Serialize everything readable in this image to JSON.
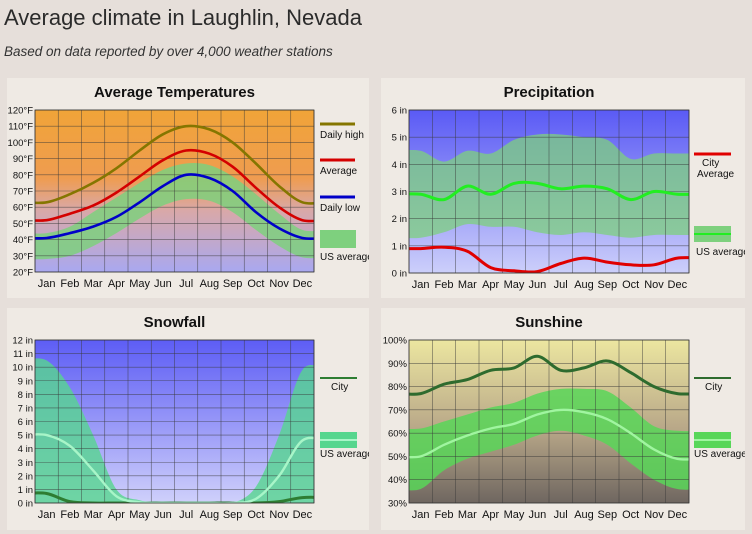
{
  "page": {
    "title": "Average climate in Laughlin, Nevada",
    "subtitle": "Based on data reported by over 4,000 weather stations"
  },
  "colors": {
    "temp_high": "#857600",
    "temp_avg": "#d40000",
    "temp_low": "#0000c8",
    "us_band": "#7ed07e",
    "precip_city": "#e00000",
    "precip_us": "#22ee22",
    "snow_city": "#2e7d32",
    "snow_us": "#a8f5c8",
    "sun_city": "#2e6b2e",
    "sun_us": "#a0f5a0"
  },
  "chart_data": [
    {
      "id": "temperature",
      "type": "line",
      "title": "Average Temperatures",
      "categories": [
        "Jan",
        "Feb",
        "Mar",
        "Apr",
        "May",
        "Jun",
        "Jul",
        "Aug",
        "Sep",
        "Oct",
        "Nov",
        "Dec"
      ],
      "ylim": [
        20,
        120
      ],
      "yticks": [
        "20°F",
        "30°F",
        "40°F",
        "50°F",
        "60°F",
        "70°F",
        "80°F",
        "90°F",
        "100°F",
        "110°F",
        "120°F"
      ],
      "series": [
        {
          "name": "Daily high",
          "values": [
            63,
            68,
            75,
            84,
            95,
            105,
            110,
            108,
            100,
            87,
            73,
            63
          ]
        },
        {
          "name": "Average",
          "values": [
            52,
            56,
            61,
            69,
            79,
            89,
            95,
            93,
            85,
            72,
            60,
            52
          ]
        },
        {
          "name": "Daily low",
          "values": [
            41,
            44,
            48,
            54,
            63,
            73,
            80,
            78,
            70,
            57,
            47,
            41
          ]
        }
      ],
      "us_average": {
        "name": "US average",
        "upper": [
          44,
          48,
          57,
          66,
          75,
          83,
          87,
          86,
          79,
          68,
          56,
          46
        ],
        "lower": [
          28,
          30,
          36,
          44,
          53,
          61,
          65,
          64,
          57,
          46,
          36,
          29
        ]
      }
    },
    {
      "id": "precipitation",
      "type": "line",
      "title": "Precipitation",
      "categories": [
        "Jan",
        "Feb",
        "Mar",
        "Apr",
        "May",
        "Jun",
        "Jul",
        "Aug",
        "Sep",
        "Oct",
        "Nov",
        "Dec"
      ],
      "ylim": [
        0,
        6
      ],
      "yticks": [
        "0 in",
        "1 in",
        "2 in",
        "3 in",
        "4 in",
        "5 in",
        "6 in"
      ],
      "series": [
        {
          "name": "City",
          "legend": "City Average",
          "values": [
            0.9,
            0.95,
            0.8,
            0.2,
            0.08,
            0.05,
            0.35,
            0.55,
            0.4,
            0.3,
            0.3,
            0.55
          ]
        },
        {
          "name": "US average",
          "values": [
            2.9,
            2.7,
            3.2,
            2.9,
            3.3,
            3.3,
            3.1,
            3.2,
            3.1,
            2.7,
            3.0,
            2.9
          ]
        }
      ],
      "us_average": {
        "name": "US average",
        "upper": [
          4.5,
          4.1,
          4.5,
          4.4,
          4.9,
          5.1,
          5.1,
          5.0,
          4.9,
          4.2,
          4.4,
          4.4
        ],
        "lower": [
          1.3,
          1.5,
          1.8,
          1.7,
          1.7,
          1.5,
          1.4,
          1.5,
          1.4,
          1.3,
          1.4,
          1.4
        ]
      }
    },
    {
      "id": "snowfall",
      "type": "line",
      "title": "Snowfall",
      "categories": [
        "Jan",
        "Feb",
        "Mar",
        "Apr",
        "May",
        "Jun",
        "Jul",
        "Aug",
        "Sep",
        "Oct",
        "Nov",
        "Dec"
      ],
      "ylim": [
        0,
        12
      ],
      "yticks": [
        "0 in",
        "1 in",
        "2 in",
        "3 in",
        "4 in",
        "5 in",
        "6 in",
        "7 in",
        "8 in",
        "9 in",
        "10 in",
        "11 in",
        "12 in"
      ],
      "series": [
        {
          "name": "City",
          "values": [
            0.7,
            0.1,
            0,
            0,
            0,
            0,
            0,
            0,
            0,
            0,
            0.1,
            0.4
          ]
        },
        {
          "name": "US average",
          "values": [
            5.0,
            4.2,
            2.4,
            0.5,
            0.05,
            0,
            0,
            0,
            0,
            0.3,
            2.0,
            4.6
          ]
        }
      ],
      "us_average": {
        "name": "US average",
        "upper": [
          10.5,
          8.5,
          5.0,
          1.0,
          0.2,
          0,
          0,
          0,
          0,
          1.2,
          5.0,
          9.8
        ],
        "lower": [
          0,
          0,
          0,
          0,
          0,
          0,
          0,
          0,
          0,
          0,
          0,
          0
        ]
      }
    },
    {
      "id": "sunshine",
      "type": "line",
      "title": "Sunshine",
      "categories": [
        "Jan",
        "Feb",
        "Mar",
        "Apr",
        "May",
        "Jun",
        "Jul",
        "Aug",
        "Sep",
        "Oct",
        "Nov",
        "Dec"
      ],
      "ylim": [
        30,
        100
      ],
      "yticks": [
        "30%",
        "40%",
        "50%",
        "60%",
        "70%",
        "80%",
        "90%",
        "100%"
      ],
      "series": [
        {
          "name": "City",
          "values": [
            77,
            81,
            83,
            87,
            88,
            93,
            87,
            88,
            91,
            86,
            80,
            77
          ]
        },
        {
          "name": "US average",
          "values": [
            50,
            55,
            59,
            62,
            64,
            68,
            70,
            69,
            66,
            60,
            53,
            49
          ]
        }
      ],
      "us_average": {
        "name": "US average",
        "upper": [
          62,
          65,
          68,
          71,
          73,
          77,
          79,
          79,
          78,
          71,
          63,
          61
        ],
        "lower": [
          36,
          44,
          49,
          52,
          55,
          59,
          61,
          59,
          55,
          47,
          40,
          36
        ]
      }
    }
  ]
}
